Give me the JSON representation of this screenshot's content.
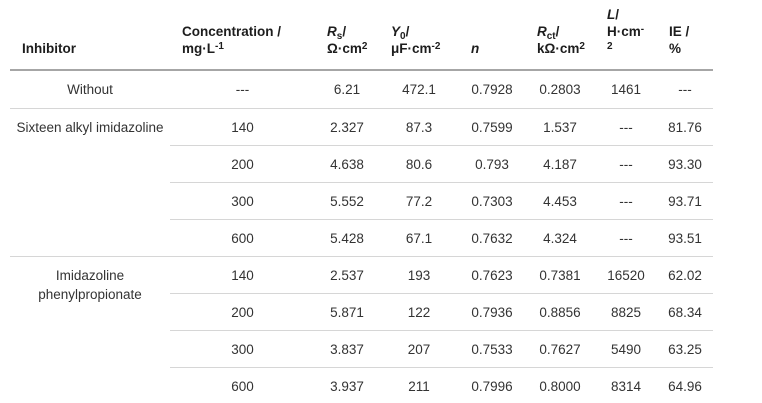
{
  "table": {
    "title_semantic": "EIS fitting parameters of corrosion inhibitors",
    "colors": {
      "background": "#ffffff",
      "header_rule": "#a6a6a6",
      "row_rule": "#d6d6d6",
      "header_text": "#1d1d1d",
      "body_text": "#333333"
    },
    "headers": {
      "inhibitor": "Inhibitor",
      "concentration": {
        "line1": "Concentration /",
        "base": "mg·L",
        "sup": "-1"
      },
      "rs": {
        "sym": "R",
        "sub": "s",
        "slash": "/",
        "unit": "Ω·cm",
        "sup": "2"
      },
      "y0": {
        "sym": "Y",
        "sub": "0",
        "slash": "/",
        "unit": "μF·cm",
        "sup": "-2"
      },
      "n": {
        "sym": "n"
      },
      "rct": {
        "sym": "R",
        "sub": "ct",
        "slash": "/",
        "unit": "kΩ·cm",
        "sup": "2"
      },
      "l": {
        "sym": "L",
        "slash": "/",
        "unit": "H·cm",
        "sup_minus": "-",
        "sup_digit": "2"
      },
      "ie": {
        "line1": "IE /",
        "line2": "%"
      }
    },
    "rows": [
      {
        "group": "Without",
        "conc": "---",
        "rs": "6.21",
        "y0": "472.1",
        "n": "0.7928",
        "rct": "0.2803",
        "l": "1461",
        "ie": "---"
      },
      {
        "group": "Sixteen alkyl imidazoline",
        "conc": "140",
        "rs": "2.327",
        "y0": "87.3",
        "n": "0.7599",
        "rct": "1.537",
        "l": "---",
        "ie": "81.76"
      },
      {
        "conc": "200",
        "rs": "4.638",
        "y0": "80.6",
        "n": "0.793",
        "rct": "4.187",
        "l": "---",
        "ie": "93.30"
      },
      {
        "conc": "300",
        "rs": "5.552",
        "y0": "77.2",
        "n": "0.7303",
        "rct": "4.453",
        "l": "---",
        "ie": "93.71"
      },
      {
        "conc": "600",
        "rs": "5.428",
        "y0": "67.1",
        "n": "0.7632",
        "rct": "4.324",
        "l": "---",
        "ie": "93.51"
      },
      {
        "group": "Imidazoline phenylpropionate",
        "conc": "140",
        "rs": "2.537",
        "y0": "193",
        "n": "0.7623",
        "rct": "0.7381",
        "l": "16520",
        "ie": "62.02"
      },
      {
        "conc": "200",
        "rs": "5.871",
        "y0": "122",
        "n": "0.7936",
        "rct": "0.8856",
        "l": "8825",
        "ie": "68.34"
      },
      {
        "conc": "300",
        "rs": "3.837",
        "y0": "207",
        "n": "0.7533",
        "rct": "0.7627",
        "l": "5490",
        "ie": "63.25"
      },
      {
        "conc": "600",
        "rs": "3.937",
        "y0": "211",
        "n": "0.7996",
        "rct": "0.8000",
        "l": "8314",
        "ie": "64.96"
      }
    ]
  }
}
